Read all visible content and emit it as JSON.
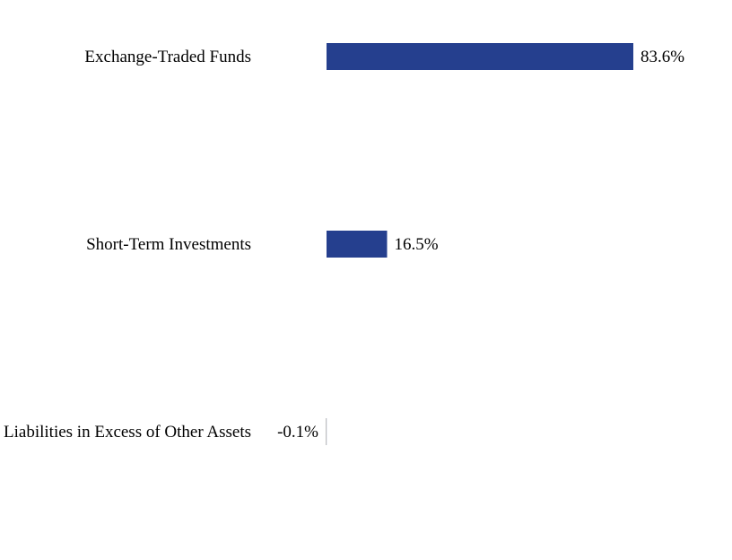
{
  "chart_data": {
    "type": "bar",
    "orientation": "horizontal",
    "categories": [
      "Exchange-Traded Funds",
      "Short-Term Investments",
      "Liabilities in Excess of Other Assets"
    ],
    "values": [
      83.6,
      16.5,
      -0.1
    ],
    "value_labels": [
      "83.6%",
      "16.5%",
      "-0.1%"
    ],
    "title": "",
    "xlabel": "",
    "ylabel": "",
    "xlim": [
      -0.1,
      83.6
    ],
    "grid": false,
    "legend": "none",
    "bar_color": "#253f8e",
    "axis_color": "#bfbfbf"
  }
}
